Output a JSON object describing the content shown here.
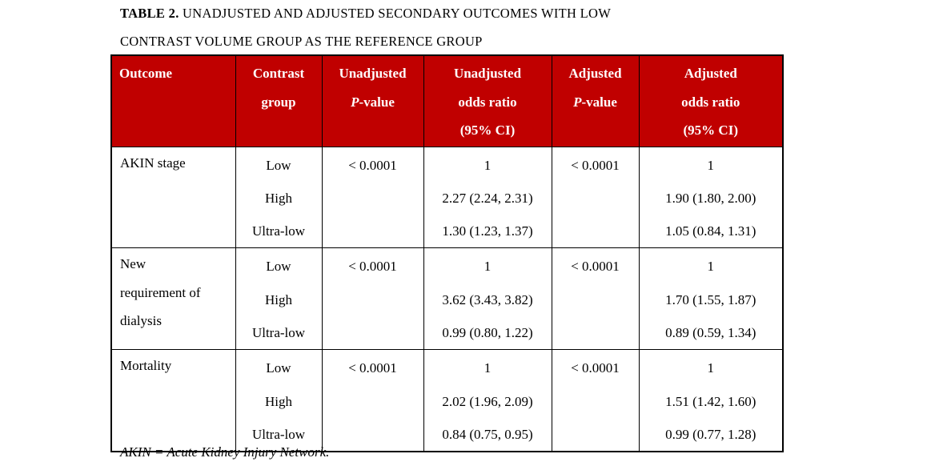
{
  "title": {
    "bold": "TABLE 2.",
    "line1_rest": " UNADJUSTED AND ADJUSTED SECONDARY OUTCOMES WITH LOW",
    "line2": "CONTRAST VOLUME GROUP AS THE REFERENCE GROUP"
  },
  "footnote": "AKIN = Acute Kidney Injury Network.",
  "colors": {
    "header_bg": "#C00000",
    "header_text": "#FFFFFF",
    "border": "#000000",
    "page_bg": "#FFFFFF"
  },
  "table": {
    "columns": [
      {
        "id": "outcome",
        "lines": [
          "Outcome"
        ],
        "align": "left"
      },
      {
        "id": "contrast-group",
        "lines": [
          "Contrast",
          "group"
        ],
        "align": "center"
      },
      {
        "id": "unadjusted-p",
        "lines": [
          "Unadjusted",
          "*P*-value"
        ],
        "align": "center"
      },
      {
        "id": "unadjusted-or",
        "lines": [
          "Unadjusted",
          "odds ratio",
          "(95% CI)"
        ],
        "align": "center"
      },
      {
        "id": "adjusted-p",
        "lines": [
          "Adjusted",
          "*P*-value"
        ],
        "align": "center"
      },
      {
        "id": "adjusted-or",
        "lines": [
          "Adjusted",
          "odds ratio",
          "(95% CI)"
        ],
        "align": "center"
      }
    ],
    "rows": [
      {
        "outcome_lines": [
          "AKIN stage"
        ],
        "contrast_groups": [
          "Low",
          "High",
          "Ultra-low"
        ],
        "unadjusted_p": "< 0.0001",
        "unadjusted_or": [
          "1",
          "2.27 (2.24, 2.31)",
          "1.30 (1.23, 1.37)"
        ],
        "adjusted_p": "< 0.0001",
        "adjusted_or": [
          "1",
          "1.90 (1.80, 2.00)",
          "1.05 (0.84, 1.31)"
        ]
      },
      {
        "outcome_lines": [
          "New",
          "requirement of",
          "dialysis"
        ],
        "contrast_groups": [
          "Low",
          "High",
          "Ultra-low"
        ],
        "unadjusted_p": "< 0.0001",
        "unadjusted_or": [
          "1",
          "3.62 (3.43, 3.82)",
          "0.99 (0.80, 1.22)"
        ],
        "adjusted_p": "< 0.0001",
        "adjusted_or": [
          "1",
          "1.70 (1.55, 1.87)",
          "0.89 (0.59, 1.34)"
        ]
      },
      {
        "outcome_lines": [
          "Mortality"
        ],
        "contrast_groups": [
          "Low",
          "High",
          "Ultra-low"
        ],
        "unadjusted_p": "< 0.0001",
        "unadjusted_or": [
          "1",
          "2.02 (1.96, 2.09)",
          "0.84 (0.75, 0.95)"
        ],
        "adjusted_p": "< 0.0001",
        "adjusted_or": [
          "1",
          "1.51 (1.42, 1.60)",
          "0.99 (0.77, 1.28)"
        ]
      }
    ]
  }
}
